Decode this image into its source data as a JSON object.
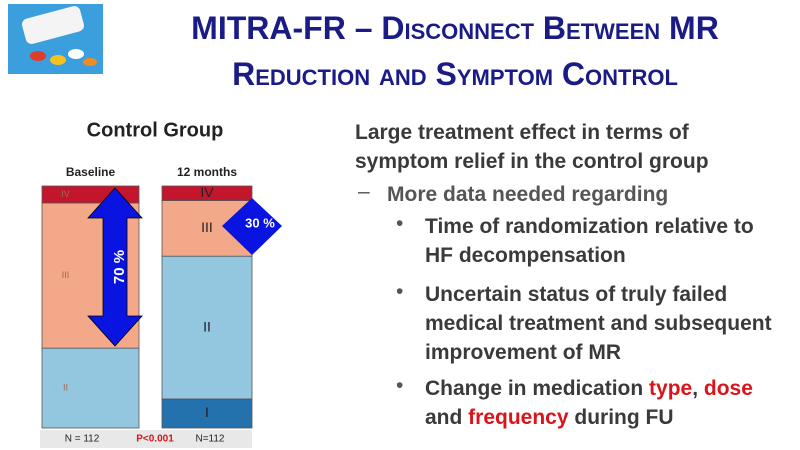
{
  "slide": {
    "title_lines": [
      "MITRA-FR – Disconnect Between MR",
      "Reduction and Symptom Control"
    ],
    "main_point": "Large treatment effect in terms of symptom relief in the control group",
    "sub_point": "More data needed regarding",
    "bullets": [
      "Time of randomization relative to HF decompensation",
      "Uncertain status of truly failed medical treatment and subsequent improvement of MR"
    ],
    "last_bullet": [
      "Change in medication ",
      "type",
      ", ",
      "dose",
      " and ",
      "frequency",
      " during FU"
    ]
  },
  "chart_data": {
    "type": "stacked_bar",
    "title": "Control Group",
    "categories": [
      "Baseline",
      "12 months"
    ],
    "series": [
      {
        "name": "IV",
        "color": "#c3162d",
        "values": [
          7,
          6
        ]
      },
      {
        "name": "III",
        "color": "#f3a88a",
        "values": [
          60,
          23
        ]
      },
      {
        "name": "II",
        "color": "#93c6df",
        "values": [
          33,
          59
        ]
      },
      {
        "name": "I",
        "color": "#2372ad",
        "values": [
          0,
          12
        ]
      }
    ],
    "ylim": [
      0,
      100
    ],
    "annotations": [
      "70 %",
      "30 %"
    ],
    "footer": [
      "N = 112",
      "P<0.001",
      "N=112"
    ]
  }
}
